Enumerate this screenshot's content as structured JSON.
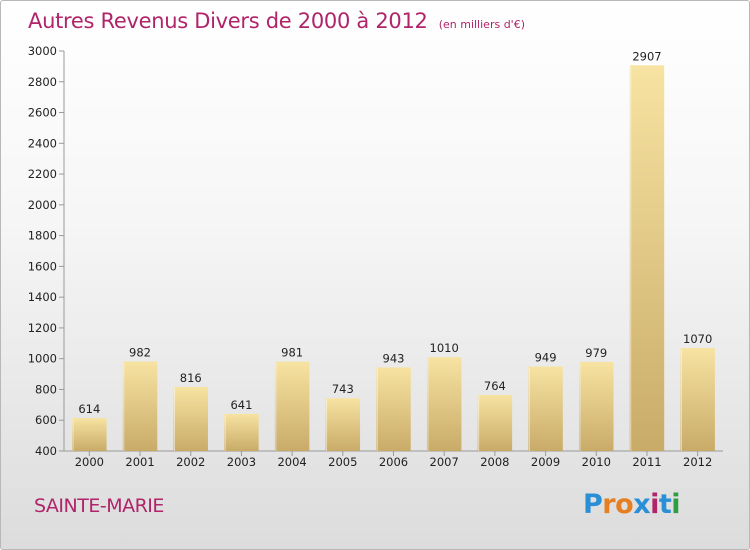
{
  "header": {
    "title": "Autres Revenus Divers de 2000 à 2012",
    "subtitle": "(en milliers d'€)"
  },
  "footer": {
    "place": "SAINTE-MARIE",
    "brand_letters": [
      "P",
      "r",
      "o",
      "x",
      "i",
      "t",
      "i"
    ],
    "brand_colors": [
      "#2a8fd6",
      "#e67e22",
      "#e67e22",
      "#2a8fd6",
      "#b0246a",
      "#2a8fd6",
      "#2e9f3e"
    ]
  },
  "colors": {
    "bar_light": "#f7e3a2",
    "bar_dark": "#c9ab68",
    "axis": "#9a9a9a",
    "text": "#222222",
    "title": "#b0246a"
  },
  "chart_data": {
    "type": "bar",
    "title": "Autres Revenus Divers de 2000 à 2012",
    "subtitle": "(en milliers d'€)",
    "xlabel": "",
    "ylabel": "",
    "categories": [
      "2000",
      "2001",
      "2002",
      "2003",
      "2004",
      "2005",
      "2006",
      "2007",
      "2008",
      "2009",
      "2010",
      "2011",
      "2012"
    ],
    "values": [
      614,
      982,
      816,
      641,
      981,
      743,
      943,
      1010,
      764,
      949,
      979,
      2907,
      1070
    ],
    "ylim": [
      400,
      3000
    ],
    "yticks": [
      400,
      600,
      800,
      1000,
      1200,
      1400,
      1600,
      1800,
      2000,
      2200,
      2400,
      2600,
      2800,
      3000
    ],
    "grid": false,
    "legend": "none"
  }
}
